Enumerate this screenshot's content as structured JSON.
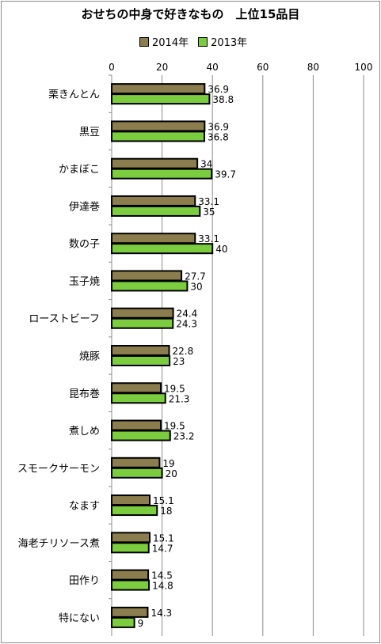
{
  "chart_data": {
    "type": "bar",
    "orientation": "horizontal",
    "title": "おせちの中身で好きなもの　上位15品目",
    "categories": [
      "栗きんとん",
      "黒豆",
      "かまぼこ",
      "伊達巻",
      "数の子",
      "玉子焼",
      "ローストビーフ",
      "焼豚",
      "昆布巻",
      "煮しめ",
      "スモークサーモン",
      "なます",
      "海老チリソース煮",
      "田作り",
      "特にない"
    ],
    "series": [
      {
        "name": "2014年",
        "color": "#8b7d4e",
        "values": [
          36.9,
          36.9,
          34,
          33.1,
          33.1,
          27.7,
          24.4,
          22.8,
          19.5,
          19.5,
          19,
          15.1,
          15.1,
          14.5,
          14.3
        ]
      },
      {
        "name": "2013年",
        "color": "#7ccc40",
        "values": [
          38.8,
          36.8,
          39.7,
          35,
          40,
          30,
          24.3,
          23,
          21.3,
          23.2,
          20,
          18,
          14.7,
          14.8,
          9
        ]
      }
    ],
    "xlim": [
      0,
      100
    ],
    "xticks": [
      "0",
      "20",
      "40",
      "60",
      "80",
      "100"
    ],
    "grid": true,
    "legend_position": "top"
  }
}
